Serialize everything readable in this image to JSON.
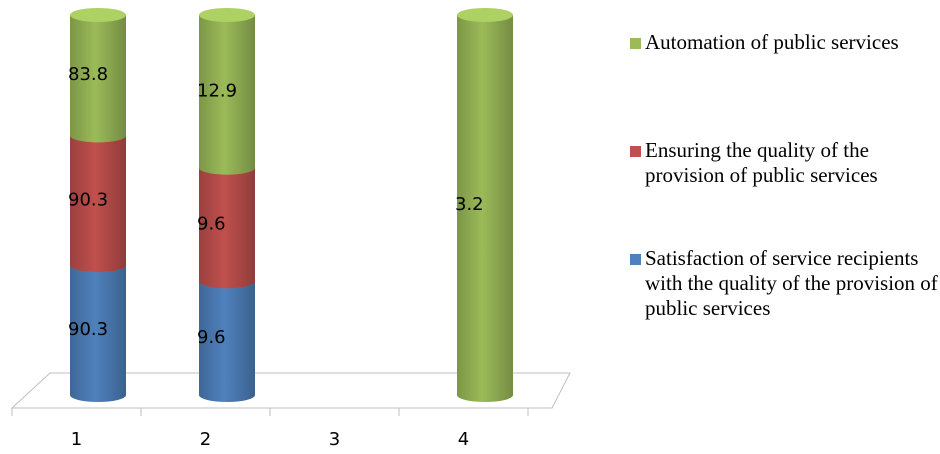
{
  "chart_data": {
    "type": "bar",
    "stacked": "percent",
    "shape": "cylinder",
    "categories": [
      "1",
      "2",
      "3",
      "4"
    ],
    "series": [
      {
        "name": "Satisfaction of service recipients with the quality of the provision of public services",
        "color": "#4f81bd",
        "values": [
          90.3,
          9.6,
          null,
          null
        ]
      },
      {
        "name": "Ensuring the quality of the provision of public services",
        "color": "#c0504d",
        "values": [
          90.3,
          9.6,
          null,
          null
        ]
      },
      {
        "name": "Automation of public services",
        "color": "#9bbb59",
        "values": [
          83.8,
          12.9,
          null,
          3.2
        ]
      }
    ],
    "legend": "right"
  }
}
